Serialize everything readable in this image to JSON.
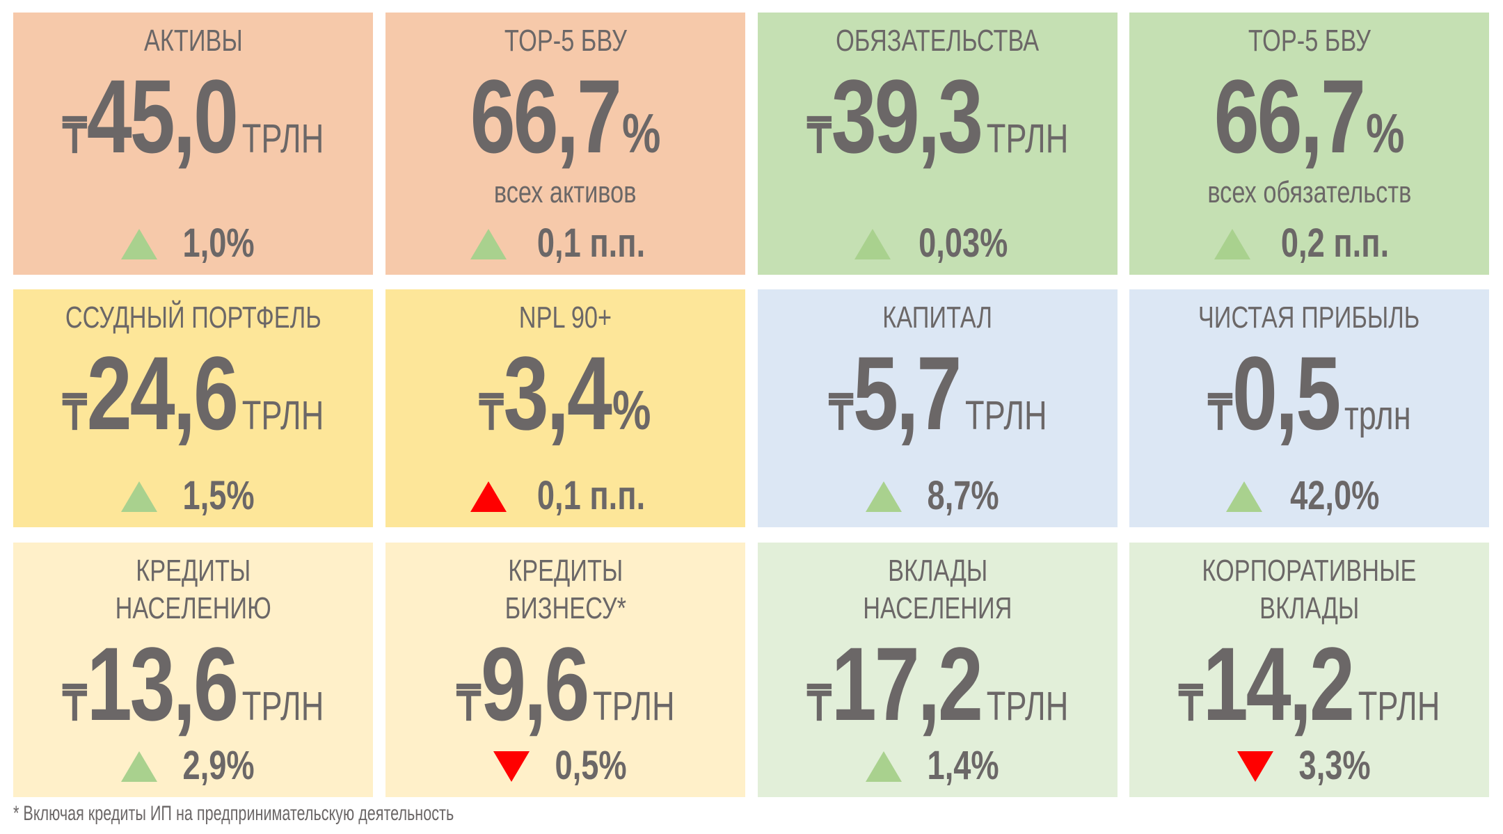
{
  "colors": {
    "peach": "#f6c9aa",
    "green": "#c5e0b3",
    "yellow": "#fde699",
    "blue": "#dce7f4",
    "light_yellow": "#fff0c9",
    "light_green": "#e2efd9",
    "up": "#a9d18e",
    "down_red": "#ff0000",
    "text": "#6b6767"
  },
  "cards": [
    {
      "title": "АКТИВЫ",
      "currency": "₸",
      "value": "45,0",
      "unit": "ТРЛН",
      "change": "1,0%",
      "direction": "up",
      "arrow_color": "green",
      "bg": "peach"
    },
    {
      "title": "TOP-5 БВУ",
      "value": "66,7",
      "unit": "%",
      "sub": "всех активов",
      "change": "0,1 п.п.",
      "direction": "up",
      "arrow_color": "green",
      "bg": "peach"
    },
    {
      "title": "ОБЯЗАТЕЛЬСТВА",
      "currency": "₸",
      "value": "39,3",
      "unit": "ТРЛН",
      "change": "0,03%",
      "direction": "up",
      "arrow_color": "green",
      "bg": "green"
    },
    {
      "title": "TOP-5 БВУ",
      "value": "66,7",
      "unit": "%",
      "sub": "всех обязательств",
      "change": "0,2 п.п.",
      "direction": "up",
      "arrow_color": "green",
      "bg": "green"
    },
    {
      "title": "ССУДНЫЙ ПОРТФЕЛЬ",
      "currency": "₸",
      "value": "24,6",
      "unit": "ТРЛН",
      "change": "1,5%",
      "direction": "up",
      "arrow_color": "green",
      "bg": "yellow"
    },
    {
      "title": "NPL 90+",
      "currency": "₸",
      "value": "3,4",
      "unit": "%",
      "change": "0,1 п.п.",
      "direction": "up",
      "arrow_color": "red",
      "bg": "yellow"
    },
    {
      "title": "КАПИТАЛ",
      "currency": "₸",
      "value": "5,7",
      "unit": "ТРЛН",
      "change": "8,7%",
      "direction": "up",
      "arrow_color": "green",
      "bg": "blue"
    },
    {
      "title": "ЧИСТАЯ ПРИБЫЛЬ",
      "currency": "₸",
      "value": "0,5",
      "unit": "трлн",
      "change": "42,0%",
      "direction": "up",
      "arrow_color": "green",
      "bg": "blue"
    },
    {
      "title": "КРЕДИТЫ",
      "title2": "НАСЕЛЕНИЮ",
      "currency": "₸",
      "value": "13,6",
      "unit": "ТРЛН",
      "change": "2,9%",
      "direction": "up",
      "arrow_color": "green",
      "bg": "light_yellow"
    },
    {
      "title": "КРЕДИТЫ",
      "title2": "БИЗНЕСУ*",
      "currency": "₸",
      "value": "9,6",
      "unit": "ТРЛН",
      "change": "0,5%",
      "direction": "down",
      "arrow_color": "red",
      "bg": "light_yellow"
    },
    {
      "title": "ВКЛАДЫ",
      "title2": "НАСЕЛЕНИЯ",
      "currency": "₸",
      "value": "17,2",
      "unit": "ТРЛН",
      "change": "1,4%",
      "direction": "up",
      "arrow_color": "green",
      "bg": "light_green"
    },
    {
      "title": "КОРПОРАТИВНЫЕ",
      "title2": "ВКЛАДЫ",
      "currency": "₸",
      "value": "14,2",
      "unit": "ТРЛН",
      "change": "3,3%",
      "direction": "down",
      "arrow_color": "red",
      "bg": "light_green"
    }
  ],
  "footnote": "* Включая кредиты ИП на предпринимательскую деятельность"
}
